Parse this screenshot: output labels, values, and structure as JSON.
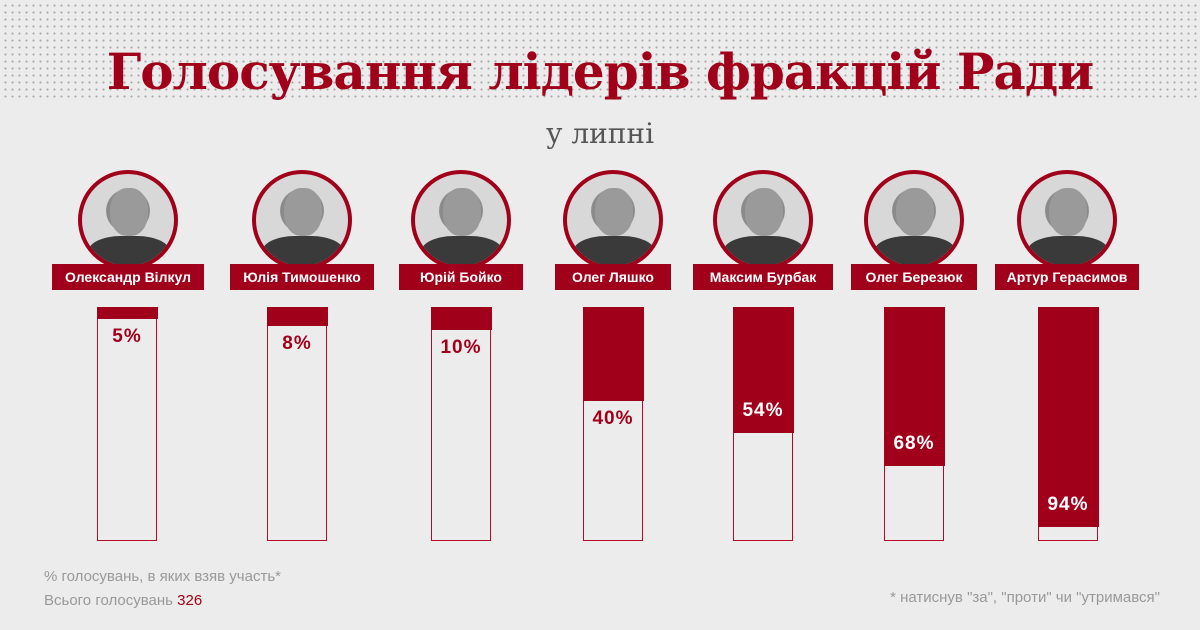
{
  "header": {
    "title": "Голосування лідерів фракцій Ради",
    "subtitle": "у липні"
  },
  "people": [
    {
      "name": "Олександр Вілкул",
      "value": 5,
      "label": "5%"
    },
    {
      "name": "Юлія Тимошенко",
      "value": 8,
      "label": "8%"
    },
    {
      "name": "Юрій Бойко",
      "value": 10,
      "label": "10%"
    },
    {
      "name": "Олег Ляшко",
      "value": 40,
      "label": "40%"
    },
    {
      "name": "Максим Бурбак",
      "value": 54,
      "label": "54%"
    },
    {
      "name": "Олег Березюк",
      "value": 68,
      "label": "68%"
    },
    {
      "name": "Артур Герасимов",
      "value": 94,
      "label": "94%"
    }
  ],
  "footer": {
    "legend": "% голосувань, в яких взяв участь*",
    "total_label": "Всього голосувань",
    "total_value": "326",
    "footnote": "* натиснув \"за\", \"проти\" чи \"утримався\""
  },
  "colors": {
    "accent": "#a1001a",
    "background": "#ececec",
    "muted": "#999999"
  },
  "chart_data": {
    "type": "bar",
    "title": "Голосування лідерів фракцій Ради",
    "subtitle": "у липні",
    "categories": [
      "Олександр Вілкул",
      "Юлія Тимошенко",
      "Юрій Бойко",
      "Олег Ляшко",
      "Максим Бурбак",
      "Олег Березюк",
      "Артур Герасимов"
    ],
    "values": [
      5,
      8,
      10,
      40,
      54,
      68,
      94
    ],
    "xlabel": "",
    "ylabel": "% голосувань, в яких взяв участь*",
    "ylim": [
      0,
      100
    ],
    "grid": false,
    "annotations": [
      "Всього голосувань 326",
      "* натиснув \"за\", \"проти\" чи \"утримався\""
    ]
  }
}
